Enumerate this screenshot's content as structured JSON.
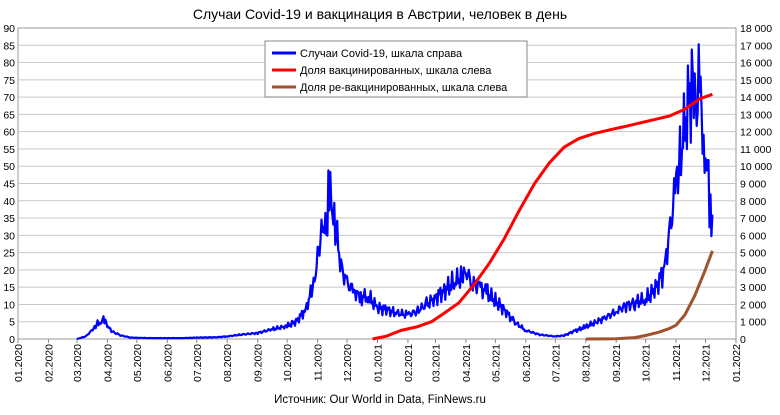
{
  "chart_data": {
    "type": "line",
    "title": "Случаи Covid-19 и вакцинация в Австрии, человек в день",
    "source": "Источник: Our World in Data, FinNews.ru",
    "x_tick_labels": [
      "01.2020",
      "02.2020",
      "03.2020",
      "04.2020",
      "05.2020",
      "06.2020",
      "07.2020",
      "08.2020",
      "09.2020",
      "10.2020",
      "11.2020",
      "12.2020",
      "01.2021",
      "02.2021",
      "03.2021",
      "04.2021",
      "05.2021",
      "06.2021",
      "07.2021",
      "08.2021",
      "09.2021",
      "10.2021",
      "11.2021",
      "12.2021",
      "01.2022"
    ],
    "y_left": {
      "min": 0,
      "max": 90,
      "step": 5,
      "tick_labels": [
        "0",
        "5",
        "10",
        "15",
        "20",
        "25",
        "30",
        "35",
        "40",
        "45",
        "50",
        "55",
        "60",
        "65",
        "70",
        "75",
        "80",
        "85",
        "90"
      ]
    },
    "y_right": {
      "min": 0,
      "max": 18000,
      "step": 1000,
      "tick_labels": [
        "0",
        "1 000",
        "2 000",
        "3 000",
        "4 000",
        "5 000",
        "6 000",
        "7 000",
        "8 000",
        "9 000",
        "10 000",
        "11 000",
        "12 000",
        "13 000",
        "14 000",
        "15 000",
        "16 000",
        "17 000",
        "18 000"
      ]
    },
    "grid": true,
    "legend_position": "top-center",
    "series": [
      {
        "name": "Случаи Covid-19, шкала справа",
        "axis": "right",
        "color": "#0000ff",
        "points": [
          [
            "2020-03-01",
            0
          ],
          [
            "2020-03-10",
            150
          ],
          [
            "2020-03-18",
            600
          ],
          [
            "2020-03-22",
            900
          ],
          [
            "2020-03-26",
            1000
          ],
          [
            "2020-03-28",
            1250
          ],
          [
            "2020-04-01",
            800
          ],
          [
            "2020-04-05",
            450
          ],
          [
            "2020-04-15",
            200
          ],
          [
            "2020-04-25",
            80
          ],
          [
            "2020-05-15",
            50
          ],
          [
            "2020-06-15",
            50
          ],
          [
            "2020-07-01",
            80
          ],
          [
            "2020-07-20",
            100
          ],
          [
            "2020-08-01",
            150
          ],
          [
            "2020-08-15",
            250
          ],
          [
            "2020-09-01",
            350
          ],
          [
            "2020-09-15",
            550
          ],
          [
            "2020-10-01",
            750
          ],
          [
            "2020-10-10",
            1000
          ],
          [
            "2020-10-20",
            1700
          ],
          [
            "2020-10-28",
            3200
          ],
          [
            "2020-11-02",
            5000
          ],
          [
            "2020-11-06",
            7000
          ],
          [
            "2020-11-10",
            6000
          ],
          [
            "2020-11-13",
            9500
          ],
          [
            "2020-11-16",
            7000
          ],
          [
            "2020-11-20",
            6200
          ],
          [
            "2020-11-25",
            4200
          ],
          [
            "2020-12-01",
            3200
          ],
          [
            "2020-12-08",
            2800
          ],
          [
            "2020-12-15",
            2400
          ],
          [
            "2020-12-22",
            2500
          ],
          [
            "2021-01-01",
            1800
          ],
          [
            "2021-01-10",
            1700
          ],
          [
            "2021-01-20",
            1500
          ],
          [
            "2021-02-01",
            1400
          ],
          [
            "2021-02-10",
            1600
          ],
          [
            "2021-02-20",
            2000
          ],
          [
            "2021-03-01",
            2400
          ],
          [
            "2021-03-10",
            2800
          ],
          [
            "2021-03-20",
            3300
          ],
          [
            "2021-03-28",
            3600
          ],
          [
            "2021-04-02",
            3800
          ],
          [
            "2021-04-08",
            3200
          ],
          [
            "2021-04-15",
            3000
          ],
          [
            "2021-04-22",
            2700
          ],
          [
            "2021-05-01",
            2200
          ],
          [
            "2021-05-10",
            1700
          ],
          [
            "2021-05-20",
            1000
          ],
          [
            "2021-06-01",
            500
          ],
          [
            "2021-06-15",
            250
          ],
          [
            "2021-07-01",
            150
          ],
          [
            "2021-07-10",
            200
          ],
          [
            "2021-07-20",
            450
          ],
          [
            "2021-08-01",
            700
          ],
          [
            "2021-08-10",
            950
          ],
          [
            "2021-08-20",
            1200
          ],
          [
            "2021-09-01",
            1600
          ],
          [
            "2021-09-10",
            1900
          ],
          [
            "2021-09-20",
            2100
          ],
          [
            "2021-10-01",
            2300
          ],
          [
            "2021-10-10",
            2800
          ],
          [
            "2021-10-20",
            4000
          ],
          [
            "2021-10-25",
            6000
          ],
          [
            "2021-11-01",
            9000
          ],
          [
            "2021-11-05",
            10500
          ],
          [
            "2021-11-10",
            12500
          ],
          [
            "2021-11-15",
            14000
          ],
          [
            "2021-11-19",
            15800
          ],
          [
            "2021-11-22",
            13000
          ],
          [
            "2021-11-25",
            15300
          ],
          [
            "2021-11-28",
            11000
          ],
          [
            "2021-12-01",
            9000
          ],
          [
            "2021-12-03",
            10300
          ],
          [
            "2021-12-06",
            7000
          ],
          [
            "2021-12-08",
            7200
          ]
        ]
      },
      {
        "name": "Доля вакцинированных, шкала слева",
        "axis": "left",
        "color": "#ff0000",
        "points": [
          [
            "2020-12-27",
            0
          ],
          [
            "2021-01-10",
            0.8
          ],
          [
            "2021-01-25",
            2.5
          ],
          [
            "2021-02-10",
            3.5
          ],
          [
            "2021-02-25",
            5.0
          ],
          [
            "2021-03-10",
            7.5
          ],
          [
            "2021-03-25",
            10.5
          ],
          [
            "2021-04-10",
            16.0
          ],
          [
            "2021-04-25",
            22.0
          ],
          [
            "2021-05-10",
            29.0
          ],
          [
            "2021-05-25",
            37.0
          ],
          [
            "2021-06-10",
            45.0
          ],
          [
            "2021-06-25",
            51.0
          ],
          [
            "2021-07-10",
            55.5
          ],
          [
            "2021-07-25",
            58.0
          ],
          [
            "2021-08-10",
            59.5
          ],
          [
            "2021-08-25",
            60.5
          ],
          [
            "2021-09-10",
            61.5
          ],
          [
            "2021-09-25",
            62.5
          ],
          [
            "2021-10-10",
            63.5
          ],
          [
            "2021-10-25",
            64.5
          ],
          [
            "2021-11-10",
            66.5
          ],
          [
            "2021-11-25",
            69.5
          ],
          [
            "2021-12-08",
            70.8
          ]
        ]
      },
      {
        "name": "Доля ре-вакцинированных, шкала слева",
        "axis": "left",
        "color": "#a0522d",
        "points": [
          [
            "2021-08-01",
            0
          ],
          [
            "2021-09-01",
            0.1
          ],
          [
            "2021-09-20",
            0.4
          ],
          [
            "2021-10-01",
            1.0
          ],
          [
            "2021-10-15",
            2.0
          ],
          [
            "2021-10-25",
            3.0
          ],
          [
            "2021-11-01",
            4.0
          ],
          [
            "2021-11-10",
            7.0
          ],
          [
            "2021-11-20",
            12.5
          ],
          [
            "2021-11-30",
            19.5
          ],
          [
            "2021-12-08",
            25.5
          ]
        ]
      }
    ]
  }
}
